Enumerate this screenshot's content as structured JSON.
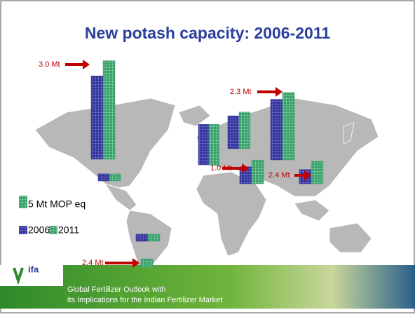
{
  "chart_data": {
    "type": "bar",
    "title": "New potash capacity: 2006-2011",
    "categories": [
      null,
      null,
      null,
      null,
      null,
      null,
      null,
      null,
      null
    ],
    "series": [
      {
        "name": "2006",
        "color": "#33339a",
        "values": [
          33,
          2.8,
          16,
          13,
          24,
          6.7,
          5.6,
          2.8,
          null
        ]
      },
      {
        "name": "2011",
        "color": "#3a9e6a",
        "values": [
          39,
          2.8,
          16,
          14.5,
          26.7,
          9.4,
          8.9,
          2.8,
          3.3
        ]
      }
    ],
    "scale_value": 5,
    "scale_label": "5 Mt MOP eq",
    "annotations": [
      "3.0 Mt",
      "2.3 Mt",
      "1.0 Mt",
      "2.4 Mt",
      "2.4 Mt"
    ]
  },
  "logo": "ifa",
  "footer": {
    "line1": "Global Fertilizer Outlook with",
    "line2": "its Implications for the Indian Fertilizer Market"
  }
}
